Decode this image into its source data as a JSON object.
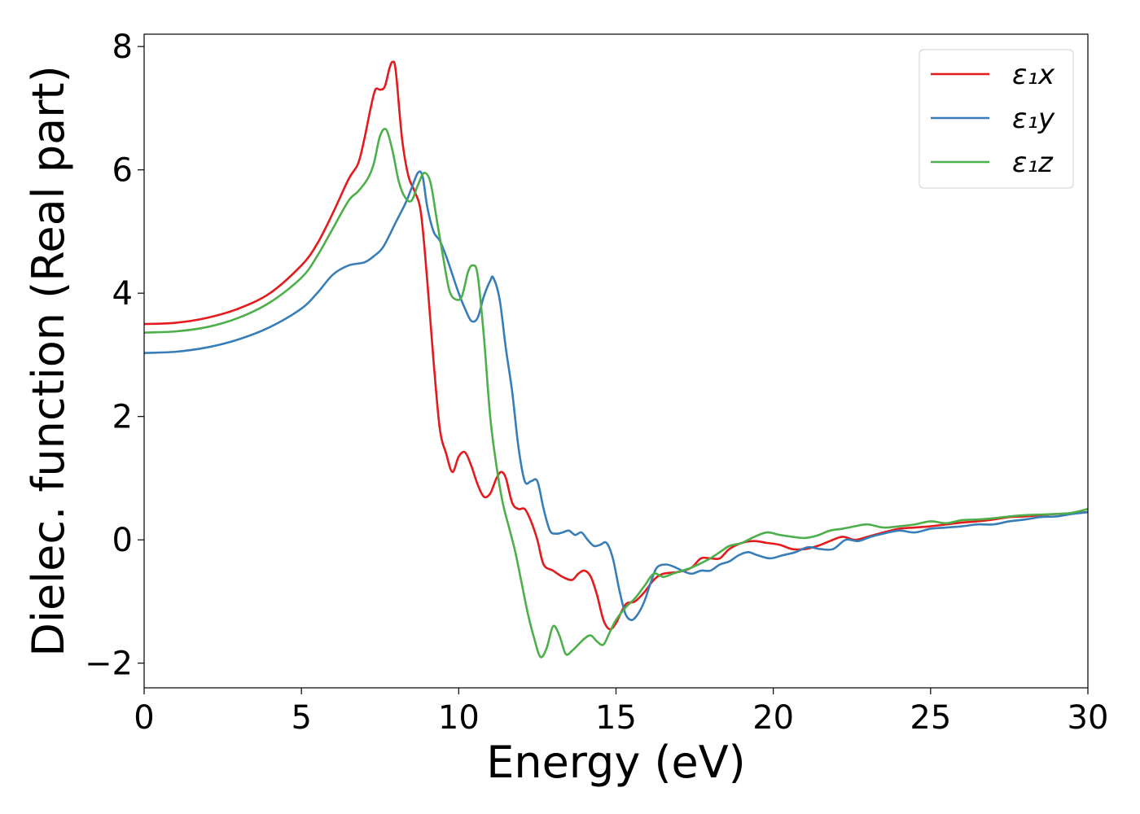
{
  "chart_data": {
    "type": "line",
    "xlabel": "Energy (eV)",
    "ylabel": "Dielec. function (Real part)",
    "xlim": [
      0,
      30
    ],
    "ylim": [
      -2.4,
      8.2
    ],
    "xticks": [
      0,
      5,
      10,
      15,
      20,
      25,
      30
    ],
    "yticks": [
      -2,
      0,
      2,
      4,
      6,
      8
    ],
    "xtick_labels": [
      "0",
      "5",
      "10",
      "15",
      "20",
      "25",
      "30"
    ],
    "ytick_labels": [
      "−2",
      "0",
      "2",
      "4",
      "6",
      "8"
    ],
    "grid": false,
    "legend_position": "top-right",
    "series": [
      {
        "name": "ε₁x",
        "color": "#e41a1c",
        "points": [
          [
            0,
            3.5
          ],
          [
            1,
            3.52
          ],
          [
            2,
            3.6
          ],
          [
            3,
            3.75
          ],
          [
            4,
            4.0
          ],
          [
            5,
            4.45
          ],
          [
            5.5,
            4.8
          ],
          [
            6,
            5.3
          ],
          [
            6.5,
            5.85
          ],
          [
            6.8,
            6.1
          ],
          [
            7,
            6.5
          ],
          [
            7.2,
            7.0
          ],
          [
            7.35,
            7.3
          ],
          [
            7.5,
            7.3
          ],
          [
            7.65,
            7.35
          ],
          [
            7.8,
            7.65
          ],
          [
            7.9,
            7.75
          ],
          [
            8.0,
            7.6
          ],
          [
            8.2,
            6.5
          ],
          [
            8.4,
            5.9
          ],
          [
            8.6,
            5.65
          ],
          [
            8.8,
            5.3
          ],
          [
            9.0,
            4.2
          ],
          [
            9.2,
            2.9
          ],
          [
            9.4,
            1.8
          ],
          [
            9.6,
            1.4
          ],
          [
            9.8,
            1.1
          ],
          [
            10.0,
            1.35
          ],
          [
            10.2,
            1.42
          ],
          [
            10.4,
            1.2
          ],
          [
            10.6,
            0.9
          ],
          [
            10.8,
            0.7
          ],
          [
            11.0,
            0.75
          ],
          [
            11.2,
            1.0
          ],
          [
            11.35,
            1.1
          ],
          [
            11.5,
            1.0
          ],
          [
            11.7,
            0.6
          ],
          [
            11.9,
            0.5
          ],
          [
            12.1,
            0.5
          ],
          [
            12.3,
            0.3
          ],
          [
            12.5,
            0.0
          ],
          [
            12.7,
            -0.4
          ],
          [
            13.0,
            -0.5
          ],
          [
            13.3,
            -0.6
          ],
          [
            13.6,
            -0.65
          ],
          [
            13.8,
            -0.55
          ],
          [
            14.0,
            -0.5
          ],
          [
            14.2,
            -0.6
          ],
          [
            14.4,
            -0.9
          ],
          [
            14.6,
            -1.3
          ],
          [
            14.8,
            -1.45
          ],
          [
            15.0,
            -1.35
          ],
          [
            15.3,
            -1.05
          ],
          [
            15.6,
            -1.0
          ],
          [
            15.9,
            -0.85
          ],
          [
            16.2,
            -0.65
          ],
          [
            16.5,
            -0.55
          ],
          [
            17.0,
            -0.52
          ],
          [
            17.4,
            -0.45
          ],
          [
            17.7,
            -0.3
          ],
          [
            18.0,
            -0.3
          ],
          [
            18.3,
            -0.3
          ],
          [
            18.6,
            -0.15
          ],
          [
            19.0,
            -0.05
          ],
          [
            19.4,
            -0.02
          ],
          [
            19.8,
            -0.05
          ],
          [
            20.2,
            -0.08
          ],
          [
            20.6,
            -0.15
          ],
          [
            21.0,
            -0.15
          ],
          [
            21.4,
            -0.1
          ],
          [
            21.8,
            -0.02
          ],
          [
            22.2,
            0.05
          ],
          [
            22.6,
            0.0
          ],
          [
            23.0,
            0.05
          ],
          [
            23.5,
            0.12
          ],
          [
            24.0,
            0.18
          ],
          [
            24.5,
            0.2
          ],
          [
            25.0,
            0.22
          ],
          [
            25.5,
            0.25
          ],
          [
            26.0,
            0.28
          ],
          [
            26.5,
            0.3
          ],
          [
            27.0,
            0.33
          ],
          [
            27.5,
            0.37
          ],
          [
            28.0,
            0.38
          ],
          [
            28.5,
            0.4
          ],
          [
            29.0,
            0.42
          ],
          [
            29.5,
            0.43
          ],
          [
            30,
            0.45
          ]
        ]
      },
      {
        "name": "ε₁y",
        "color": "#377eb8",
        "points": [
          [
            0,
            3.03
          ],
          [
            1,
            3.05
          ],
          [
            2,
            3.12
          ],
          [
            3,
            3.25
          ],
          [
            4,
            3.45
          ],
          [
            5,
            3.75
          ],
          [
            5.5,
            4.0
          ],
          [
            6,
            4.3
          ],
          [
            6.5,
            4.45
          ],
          [
            7.0,
            4.5
          ],
          [
            7.3,
            4.6
          ],
          [
            7.6,
            4.75
          ],
          [
            8.0,
            5.15
          ],
          [
            8.3,
            5.45
          ],
          [
            8.5,
            5.7
          ],
          [
            8.7,
            5.95
          ],
          [
            8.85,
            5.9
          ],
          [
            9.0,
            5.4
          ],
          [
            9.2,
            5.0
          ],
          [
            9.4,
            4.85
          ],
          [
            9.6,
            4.6
          ],
          [
            9.8,
            4.3
          ],
          [
            10.0,
            4.0
          ],
          [
            10.2,
            3.75
          ],
          [
            10.4,
            3.55
          ],
          [
            10.6,
            3.6
          ],
          [
            10.8,
            3.95
          ],
          [
            11.0,
            4.2
          ],
          [
            11.1,
            4.25
          ],
          [
            11.3,
            3.9
          ],
          [
            11.5,
            3.1
          ],
          [
            11.7,
            2.4
          ],
          [
            11.9,
            1.5
          ],
          [
            12.1,
            0.95
          ],
          [
            12.3,
            0.95
          ],
          [
            12.5,
            0.95
          ],
          [
            12.7,
            0.5
          ],
          [
            12.9,
            0.15
          ],
          [
            13.1,
            0.1
          ],
          [
            13.3,
            0.12
          ],
          [
            13.5,
            0.15
          ],
          [
            13.7,
            0.08
          ],
          [
            13.9,
            0.12
          ],
          [
            14.1,
            0.0
          ],
          [
            14.3,
            -0.1
          ],
          [
            14.5,
            -0.08
          ],
          [
            14.7,
            -0.05
          ],
          [
            14.9,
            -0.3
          ],
          [
            15.1,
            -0.8
          ],
          [
            15.3,
            -1.2
          ],
          [
            15.5,
            -1.3
          ],
          [
            15.7,
            -1.2
          ],
          [
            15.9,
            -1.0
          ],
          [
            16.1,
            -0.7
          ],
          [
            16.3,
            -0.45
          ],
          [
            16.6,
            -0.4
          ],
          [
            16.9,
            -0.45
          ],
          [
            17.1,
            -0.5
          ],
          [
            17.4,
            -0.55
          ],
          [
            17.7,
            -0.5
          ],
          [
            18.0,
            -0.5
          ],
          [
            18.3,
            -0.4
          ],
          [
            18.6,
            -0.35
          ],
          [
            18.9,
            -0.25
          ],
          [
            19.2,
            -0.2
          ],
          [
            19.5,
            -0.25
          ],
          [
            19.9,
            -0.3
          ],
          [
            20.3,
            -0.25
          ],
          [
            20.7,
            -0.2
          ],
          [
            21.1,
            -0.12
          ],
          [
            21.5,
            -0.15
          ],
          [
            21.9,
            -0.15
          ],
          [
            22.3,
            0.0
          ],
          [
            22.7,
            -0.02
          ],
          [
            23.1,
            0.05
          ],
          [
            23.5,
            0.1
          ],
          [
            24.0,
            0.15
          ],
          [
            24.5,
            0.12
          ],
          [
            25.0,
            0.18
          ],
          [
            25.5,
            0.2
          ],
          [
            26.0,
            0.22
          ],
          [
            26.5,
            0.25
          ],
          [
            27.0,
            0.25
          ],
          [
            27.5,
            0.3
          ],
          [
            28.0,
            0.33
          ],
          [
            28.5,
            0.37
          ],
          [
            29.0,
            0.38
          ],
          [
            29.5,
            0.42
          ],
          [
            30,
            0.45
          ]
        ]
      },
      {
        "name": "ε₁z",
        "color": "#4daf4a",
        "points": [
          [
            0,
            3.36
          ],
          [
            1,
            3.38
          ],
          [
            2,
            3.45
          ],
          [
            3,
            3.6
          ],
          [
            4,
            3.85
          ],
          [
            5,
            4.25
          ],
          [
            5.5,
            4.6
          ],
          [
            6,
            5.05
          ],
          [
            6.5,
            5.5
          ],
          [
            6.8,
            5.65
          ],
          [
            7.1,
            5.85
          ],
          [
            7.3,
            6.1
          ],
          [
            7.5,
            6.55
          ],
          [
            7.7,
            6.65
          ],
          [
            7.9,
            6.3
          ],
          [
            8.1,
            5.8
          ],
          [
            8.3,
            5.55
          ],
          [
            8.5,
            5.5
          ],
          [
            8.7,
            5.75
          ],
          [
            8.9,
            5.95
          ],
          [
            9.1,
            5.8
          ],
          [
            9.3,
            5.2
          ],
          [
            9.5,
            4.6
          ],
          [
            9.7,
            4.05
          ],
          [
            9.9,
            3.9
          ],
          [
            10.1,
            3.95
          ],
          [
            10.3,
            4.35
          ],
          [
            10.45,
            4.45
          ],
          [
            10.6,
            4.3
          ],
          [
            10.8,
            3.3
          ],
          [
            11.0,
            2.0
          ],
          [
            11.2,
            1.2
          ],
          [
            11.4,
            0.6
          ],
          [
            11.6,
            0.2
          ],
          [
            11.8,
            -0.2
          ],
          [
            12.0,
            -0.7
          ],
          [
            12.2,
            -1.2
          ],
          [
            12.4,
            -1.6
          ],
          [
            12.6,
            -1.9
          ],
          [
            12.8,
            -1.75
          ],
          [
            13.0,
            -1.4
          ],
          [
            13.2,
            -1.55
          ],
          [
            13.4,
            -1.85
          ],
          [
            13.6,
            -1.8
          ],
          [
            13.8,
            -1.7
          ],
          [
            14.0,
            -1.6
          ],
          [
            14.2,
            -1.55
          ],
          [
            14.4,
            -1.65
          ],
          [
            14.6,
            -1.7
          ],
          [
            14.8,
            -1.5
          ],
          [
            15.0,
            -1.3
          ],
          [
            15.3,
            -1.1
          ],
          [
            15.6,
            -0.95
          ],
          [
            15.9,
            -0.75
          ],
          [
            16.2,
            -0.55
          ],
          [
            16.5,
            -0.6
          ],
          [
            16.8,
            -0.55
          ],
          [
            17.1,
            -0.5
          ],
          [
            17.4,
            -0.45
          ],
          [
            17.7,
            -0.38
          ],
          [
            18.0,
            -0.3
          ],
          [
            18.3,
            -0.2
          ],
          [
            18.6,
            -0.1
          ],
          [
            19.0,
            -0.05
          ],
          [
            19.4,
            0.05
          ],
          [
            19.8,
            0.12
          ],
          [
            20.2,
            0.08
          ],
          [
            20.6,
            0.05
          ],
          [
            21.0,
            0.03
          ],
          [
            21.4,
            0.07
          ],
          [
            21.8,
            0.15
          ],
          [
            22.2,
            0.18
          ],
          [
            22.6,
            0.22
          ],
          [
            23.0,
            0.25
          ],
          [
            23.5,
            0.2
          ],
          [
            24.0,
            0.22
          ],
          [
            24.5,
            0.25
          ],
          [
            25.0,
            0.3
          ],
          [
            25.5,
            0.27
          ],
          [
            26.0,
            0.32
          ],
          [
            26.5,
            0.33
          ],
          [
            27.0,
            0.35
          ],
          [
            27.5,
            0.38
          ],
          [
            28.0,
            0.4
          ],
          [
            28.5,
            0.41
          ],
          [
            29.0,
            0.42
          ],
          [
            29.5,
            0.44
          ],
          [
            30,
            0.5
          ]
        ]
      }
    ]
  }
}
